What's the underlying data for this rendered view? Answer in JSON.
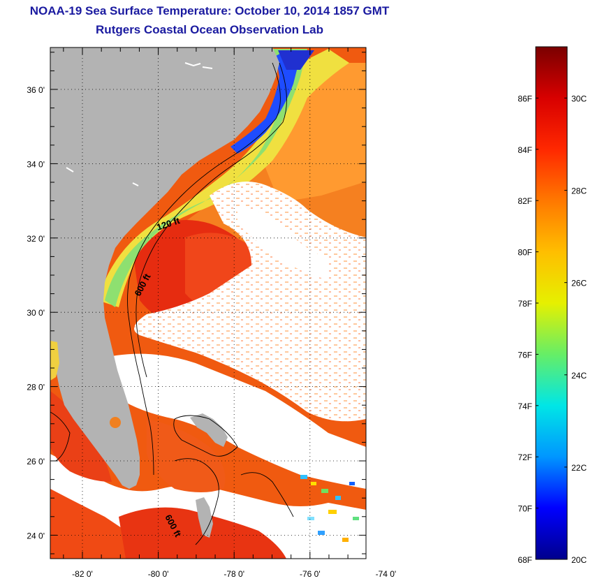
{
  "title": "NOAA-19 Sea Surface Temperature:  October 10, 2014 1857 GMT",
  "subtitle": "Rutgers Coastal Ocean Observation Lab",
  "map": {
    "lat_ticks": [
      {
        "value": 36,
        "label": "36 0'"
      },
      {
        "value": 34,
        "label": "34 0'"
      },
      {
        "value": 32,
        "label": "32 0'"
      },
      {
        "value": 30,
        "label": "30 0'"
      },
      {
        "value": 28,
        "label": "28 0'"
      },
      {
        "value": 26,
        "label": "26 0'"
      },
      {
        "value": 24,
        "label": "24 0'"
      }
    ],
    "lon_ticks": [
      {
        "value": -82,
        "label": "-82 0'"
      },
      {
        "value": -80,
        "label": "-80 0'"
      },
      {
        "value": -78,
        "label": "-78 0'"
      },
      {
        "value": -76,
        "label": "-76 0'"
      },
      {
        "value": -74,
        "label": "-74 0'"
      }
    ],
    "contour_labels": {
      "c120_north": "120 ft",
      "c600_mid": "600 ft",
      "c600_south": "600 ft"
    },
    "colors": {
      "land": "#b3b3b3",
      "cloud": "#ffffff",
      "contour": "#000000"
    }
  },
  "colorbar": {
    "f_labels": [
      {
        "value": 86,
        "label": "86F"
      },
      {
        "value": 84,
        "label": "84F"
      },
      {
        "value": 82,
        "label": "82F"
      },
      {
        "value": 80,
        "label": "80F"
      },
      {
        "value": 78,
        "label": "78F"
      },
      {
        "value": 76,
        "label": "76F"
      },
      {
        "value": 74,
        "label": "74F"
      },
      {
        "value": 72,
        "label": "72F"
      },
      {
        "value": 70,
        "label": "70F"
      },
      {
        "value": 68,
        "label": "68F"
      }
    ],
    "c_labels": [
      {
        "value": 30,
        "label": "30C"
      },
      {
        "value": 28,
        "label": "28C"
      },
      {
        "value": 26,
        "label": "26C"
      },
      {
        "value": 24,
        "label": "24C"
      },
      {
        "value": 22,
        "label": "22C"
      },
      {
        "value": 20,
        "label": "20C"
      }
    ],
    "range_f": [
      68,
      88
    ],
    "stops": [
      "#00008c",
      "#0000ff",
      "#0096ff",
      "#00e6e6",
      "#66ee66",
      "#e6f000",
      "#ffbe00",
      "#ff7800",
      "#ff2800",
      "#d80000",
      "#7a0000"
    ]
  }
}
